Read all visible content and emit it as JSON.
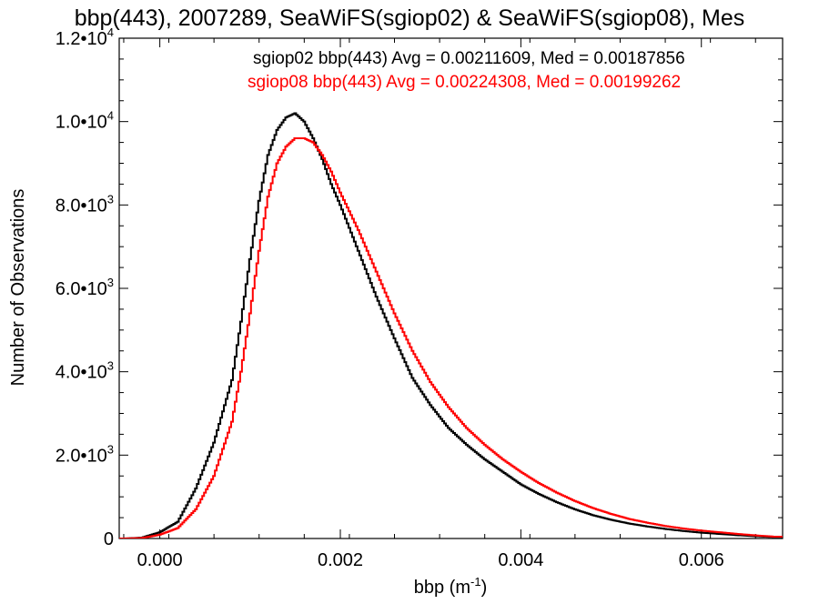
{
  "chart_data": {
    "type": "line",
    "title": "bbp(443), 2007289, SeaWiFS(sgiop02) & SeaWiFS(sgiop08), Mes",
    "xlabel_base": "bbp (m",
    "xlabel_sup": "-1",
    "xlabel_end": ")",
    "ylabel": "Number of Observations",
    "xlim": [
      -0.00045,
      0.0069
    ],
    "ylim": [
      0,
      12000
    ],
    "x_ticks": [
      {
        "value": 0.0,
        "label": "0.000"
      },
      {
        "value": 0.002,
        "label": "0.002"
      },
      {
        "value": 0.004,
        "label": "0.004"
      },
      {
        "value": 0.006,
        "label": "0.006"
      }
    ],
    "y_ticks": [
      {
        "value": 0,
        "mant": "0",
        "exp": ""
      },
      {
        "value": 2000,
        "mant": "2.0•10",
        "exp": "3"
      },
      {
        "value": 4000,
        "mant": "4.0•10",
        "exp": "3"
      },
      {
        "value": 6000,
        "mant": "6.0•10",
        "exp": "3"
      },
      {
        "value": 8000,
        "mant": "8.0•10",
        "exp": "3"
      },
      {
        "value": 10000,
        "mant": "1.0•10",
        "exp": "4"
      },
      {
        "value": 12000,
        "mant": "1.2•10",
        "exp": "4"
      }
    ],
    "grid": false,
    "series": [
      {
        "name": "sgiop02 bbp(443)",
        "legend_text": "sgiop02 bbp(443) Avg = 0.00211609, Med = 0.00187856",
        "color": "#000000",
        "x": [
          -0.0004,
          -0.0002,
          0.0,
          0.0002,
          0.0004,
          0.0006,
          0.0008,
          0.0009,
          0.001,
          0.0011,
          0.0012,
          0.0013,
          0.0014,
          0.0015,
          0.0016,
          0.0017,
          0.0018,
          0.0019,
          0.002,
          0.0022,
          0.0024,
          0.0026,
          0.0028,
          0.003,
          0.0032,
          0.0034,
          0.0036,
          0.0038,
          0.004,
          0.0042,
          0.0044,
          0.0046,
          0.0048,
          0.005,
          0.0052,
          0.0054,
          0.0056,
          0.0058,
          0.006,
          0.0062,
          0.0064,
          0.0066,
          0.0068
        ],
        "y": [
          0,
          20,
          150,
          400,
          1200,
          2300,
          3800,
          5200,
          6700,
          8100,
          9200,
          9800,
          10100,
          10200,
          10000,
          9600,
          9100,
          8500,
          8000,
          6900,
          5800,
          4800,
          3850,
          3200,
          2650,
          2250,
          1900,
          1600,
          1300,
          1070,
          870,
          700,
          560,
          450,
          360,
          290,
          230,
          180,
          140,
          110,
          80,
          55,
          35
        ]
      },
      {
        "name": "sgiop08 bbp(443)",
        "legend_text": "sgiop08 bbp(443) Avg = 0.00224308, Med = 0.00199262",
        "color": "#ff0000",
        "x": [
          -0.0004,
          -0.0002,
          0.0,
          0.0002,
          0.0004,
          0.0006,
          0.0008,
          0.0009,
          0.001,
          0.0011,
          0.0012,
          0.0013,
          0.0014,
          0.0015,
          0.0016,
          0.0017,
          0.0018,
          0.0019,
          0.002,
          0.0022,
          0.0024,
          0.0026,
          0.0028,
          0.003,
          0.0032,
          0.0034,
          0.0036,
          0.0038,
          0.004,
          0.0042,
          0.0044,
          0.0046,
          0.0048,
          0.005,
          0.0052,
          0.0054,
          0.0056,
          0.0058,
          0.006,
          0.0062,
          0.0064,
          0.0066,
          0.0068
        ],
        "y": [
          0,
          10,
          90,
          250,
          700,
          1500,
          2800,
          4000,
          5400,
          6900,
          8200,
          9000,
          9400,
          9600,
          9600,
          9500,
          9200,
          8800,
          8300,
          7400,
          6400,
          5400,
          4500,
          3750,
          3150,
          2650,
          2250,
          1900,
          1600,
          1330,
          1100,
          900,
          730,
          590,
          470,
          380,
          300,
          240,
          190,
          150,
          110,
          75,
          45
        ]
      }
    ]
  }
}
